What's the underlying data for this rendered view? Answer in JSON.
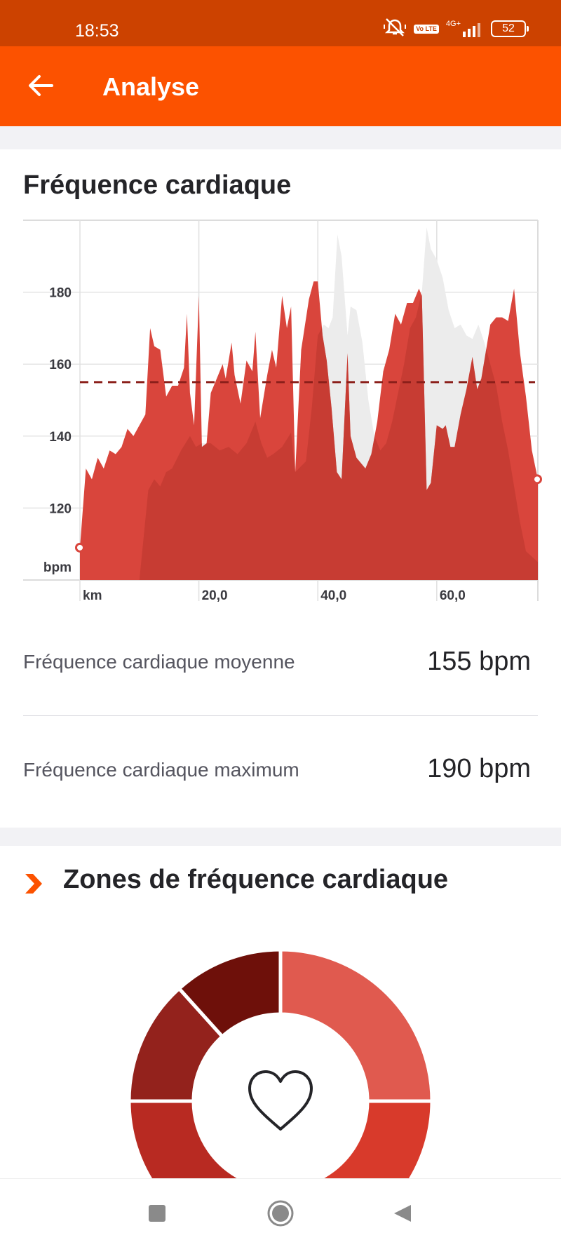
{
  "status_bar": {
    "time": "18:53",
    "volte": "Vo LTE",
    "network": "4G+",
    "battery": "52",
    "icons": [
      "mute-icon",
      "signal-icon",
      "battery-icon"
    ]
  },
  "app_bar": {
    "title": "Analyse",
    "back_icon": "arrow-left-icon"
  },
  "heart_rate": {
    "title": "Fréquence cardiaque",
    "chart_data": {
      "type": "area",
      "title": "",
      "xlabel": "km",
      "ylabel": "bpm",
      "x_ticks": [
        "km",
        "20,0",
        "40,0",
        "60,0"
      ],
      "y_ticks": [
        180,
        160,
        140,
        120
      ],
      "ylim": [
        100,
        200
      ],
      "xlim": [
        0,
        77
      ],
      "average_line": 155,
      "colors": {
        "main": "#d9453c",
        "overlay": "#cc4a40",
        "background_series": "#ececec",
        "average": "#8b1f1a"
      },
      "series": [
        {
          "values": [
            [
              0,
              109
            ],
            [
              1,
              131
            ],
            [
              2,
              128
            ],
            [
              3,
              134
            ],
            [
              4,
              131
            ],
            [
              5,
              136
            ],
            [
              6,
              135
            ],
            [
              7,
              137
            ],
            [
              8,
              142
            ],
            [
              9,
              140
            ],
            [
              10,
              143
            ],
            [
              11,
              146
            ],
            [
              11.8,
              170
            ],
            [
              12.5,
              165
            ],
            [
              13.5,
              164
            ],
            [
              14.5,
              151
            ],
            [
              15.5,
              154
            ],
            [
              16.5,
              154
            ],
            [
              17.5,
              159
            ],
            [
              18,
              174
            ],
            [
              18.5,
              152
            ],
            [
              19.2,
              143
            ],
            [
              20,
              179
            ],
            [
              20.5,
              137
            ],
            [
              21.3,
              138
            ],
            [
              22,
              152
            ],
            [
              23,
              156
            ],
            [
              24,
              160
            ],
            [
              24.5,
              156
            ],
            [
              25.5,
              166
            ],
            [
              26,
              157
            ],
            [
              27,
              149
            ],
            [
              28,
              161
            ],
            [
              29,
              158
            ],
            [
              29.5,
              169
            ],
            [
              30.3,
              145
            ],
            [
              31.5,
              157
            ],
            [
              32.3,
              164
            ],
            [
              33,
              159
            ],
            [
              34,
              179
            ],
            [
              34.8,
              170
            ],
            [
              35.5,
              176
            ],
            [
              36.2,
              130
            ],
            [
              37.2,
              164
            ],
            [
              38.5,
              178
            ],
            [
              39.3,
              183
            ],
            [
              40,
              183
            ],
            [
              40.8,
              168
            ],
            [
              41.5,
              161
            ],
            [
              42.3,
              148
            ],
            [
              43.2,
              130
            ],
            [
              44,
              128
            ],
            [
              45,
              163
            ],
            [
              45.5,
              140
            ],
            [
              46.5,
              134
            ],
            [
              48,
              131
            ],
            [
              49,
              135
            ],
            [
              50,
              144
            ],
            [
              51,
              158
            ],
            [
              52,
              164
            ],
            [
              53,
              174
            ],
            [
              54,
              171
            ],
            [
              55,
              177
            ],
            [
              56,
              177
            ],
            [
              57,
              181
            ],
            [
              57.5,
              179
            ],
            [
              58.3,
              125
            ],
            [
              59,
              127
            ],
            [
              60,
              143
            ],
            [
              61,
              142
            ],
            [
              61.5,
              143
            ],
            [
              62.3,
              137
            ],
            [
              63,
              137
            ],
            [
              64,
              146
            ],
            [
              65,
              153
            ],
            [
              66,
              162
            ],
            [
              66.8,
              153
            ],
            [
              67.5,
              156
            ],
            [
              69,
              171
            ],
            [
              70,
              173
            ],
            [
              71,
              173
            ],
            [
              72,
              172
            ],
            [
              73,
              181
            ],
            [
              74,
              163
            ],
            [
              75,
              151
            ],
            [
              76,
              136
            ],
            [
              77,
              128
            ]
          ]
        },
        {
          "values": [
            [
              0,
              100
            ],
            [
              10,
              100
            ],
            [
              11.5,
              125
            ],
            [
              12.5,
              128
            ],
            [
              13.5,
              126
            ],
            [
              14.5,
              130
            ],
            [
              15.5,
              131
            ],
            [
              17,
              136
            ],
            [
              18.5,
              140
            ],
            [
              19.5,
              137
            ],
            [
              20.5,
              138
            ],
            [
              22,
              138
            ],
            [
              23.5,
              136
            ],
            [
              25,
              137
            ],
            [
              26.5,
              135
            ],
            [
              28,
              138
            ],
            [
              29.5,
              144
            ],
            [
              30.5,
              138
            ],
            [
              31.5,
              134
            ],
            [
              32.5,
              135
            ],
            [
              34,
              137
            ],
            [
              35.5,
              141
            ],
            [
              36.2,
              130
            ],
            [
              38,
              133
            ],
            [
              39,
              148
            ],
            [
              40,
              168
            ],
            [
              41,
              171
            ],
            [
              41.8,
              170
            ],
            [
              42.5,
              173
            ],
            [
              43.3,
              196
            ],
            [
              44,
              190
            ],
            [
              45,
              168
            ],
            [
              45.5,
              176
            ],
            [
              46.5,
              175
            ],
            [
              47.5,
              166
            ],
            [
              48.5,
              150
            ],
            [
              49.5,
              140
            ],
            [
              50.5,
              136
            ],
            [
              51.5,
              138
            ],
            [
              52.5,
              144
            ],
            [
              53.5,
              152
            ],
            [
              54.5,
              160
            ],
            [
              55.5,
              170
            ],
            [
              56.5,
              173
            ],
            [
              57.5,
              180
            ],
            [
              58.3,
              198
            ],
            [
              59,
              192
            ],
            [
              60,
              189
            ],
            [
              61,
              184
            ],
            [
              62,
              175
            ],
            [
              63,
              170
            ],
            [
              64,
              171
            ],
            [
              65,
              168
            ],
            [
              66,
              167
            ],
            [
              67,
              171
            ],
            [
              68,
              166
            ],
            [
              69,
              160
            ],
            [
              70,
              154
            ],
            [
              71,
              144
            ],
            [
              72,
              136
            ],
            [
              73,
              126
            ],
            [
              74,
              116
            ],
            [
              75,
              108
            ],
            [
              77,
              105
            ]
          ]
        }
      ]
    },
    "stats": [
      {
        "label": "Fréquence cardiaque moyenne",
        "value": "155 bpm"
      },
      {
        "label": "Fréquence cardiaque maximum",
        "value": "190 bpm"
      }
    ]
  },
  "zones": {
    "title": "Zones de fréquence cardiaque",
    "chevron_icon": "chevron-right-icon",
    "center_icon": "heart-icon",
    "colors": [
      "#e05a4f",
      "#d83a2b",
      "#b82a22",
      "#93221c",
      "#6e100a"
    ]
  },
  "nav_bar": {
    "icons": [
      "recent-apps-icon",
      "home-icon",
      "back-icon"
    ]
  }
}
